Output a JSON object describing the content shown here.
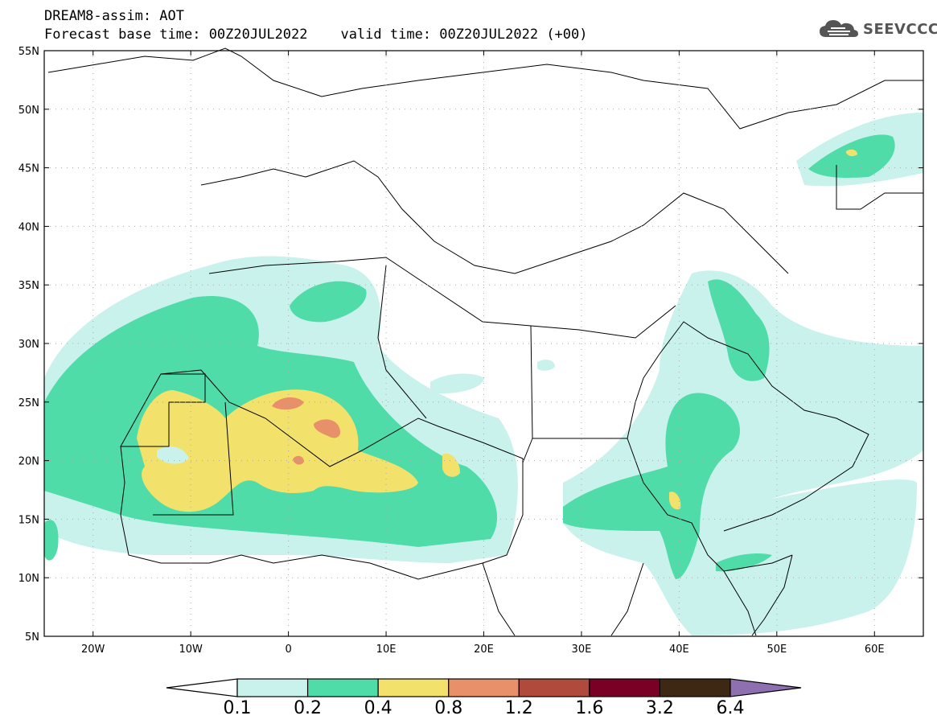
{
  "header": {
    "title": "DREAM8-assim: AOT",
    "subtitle": "Forecast base time: 00Z20JUL2022    valid time: 00Z20JUL2022 (+00)"
  },
  "logo": {
    "text": "SEEVCCC",
    "icon": "cloud-icon"
  },
  "map": {
    "lon_range": [
      -25,
      65
    ],
    "lat_range": [
      5,
      55
    ],
    "x_ticks": [
      "20W",
      "10W",
      "0",
      "10E",
      "20E",
      "30E",
      "40E",
      "50E",
      "60E"
    ],
    "x_tick_values": [
      -20,
      -10,
      0,
      10,
      20,
      30,
      40,
      50,
      60
    ],
    "y_ticks": [
      "55N",
      "50N",
      "45N",
      "40N",
      "35N",
      "30N",
      "25N",
      "20N",
      "15N",
      "10N",
      "5N"
    ],
    "y_tick_values": [
      55,
      50,
      45,
      40,
      35,
      30,
      25,
      20,
      15,
      10,
      5
    ],
    "gridlines": "dotted"
  },
  "colorbar": {
    "labels": [
      "0.1",
      "0.2",
      "0.4",
      "0.8",
      "1.2",
      "1.6",
      "3.2",
      "6.4"
    ],
    "colors": [
      "#c9f2ec",
      "#4fdca8",
      "#f2e16a",
      "#e8906a",
      "#b04a3c",
      "#7a0026",
      "#3e2713"
    ],
    "extend_low": "#ffffff",
    "extend_high": "#8e6fb0"
  }
}
